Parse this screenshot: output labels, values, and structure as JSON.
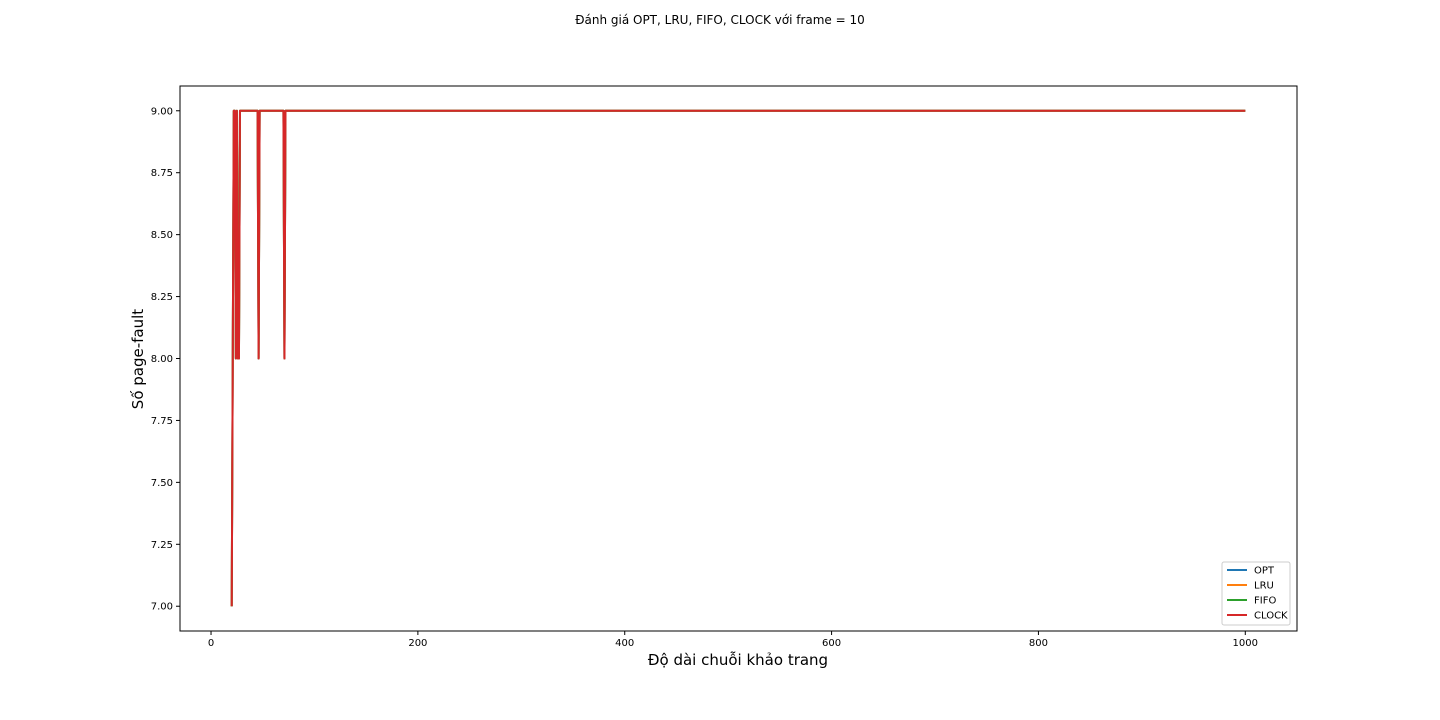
{
  "chart_data": {
    "type": "line",
    "title": "Đánh giá OPT, LRU, FIFO, CLOCK với frame = 10",
    "xlabel": "Độ dài chuỗi khảo trang",
    "ylabel": "Số page-fault",
    "xlim": [
      -30,
      1050
    ],
    "ylim": [
      6.9,
      9.1
    ],
    "xticks": [
      0,
      200,
      400,
      600,
      800,
      1000
    ],
    "xtick_labels": [
      "0",
      "200",
      "400",
      "600",
      "800",
      "1000"
    ],
    "yticks": [
      7.0,
      7.25,
      7.5,
      7.75,
      8.0,
      8.25,
      8.5,
      8.75,
      9.0
    ],
    "ytick_labels": [
      "7.00",
      "7.25",
      "7.50",
      "7.75",
      "8.00",
      "8.25",
      "8.50",
      "8.75",
      "9.00"
    ],
    "grid": false,
    "legend_position": "bottom-right",
    "series": [
      {
        "name": "OPT",
        "color": "#1f77b4",
        "x": [
          20,
          21,
          22,
          23,
          24,
          25,
          26,
          27,
          28,
          29,
          45,
          46,
          47,
          48,
          70,
          71,
          72,
          1000
        ],
        "y": [
          7,
          8,
          9,
          9,
          8,
          9,
          8,
          8,
          9,
          9,
          9,
          8,
          9,
          9,
          9,
          8,
          9,
          9
        ]
      },
      {
        "name": "LRU",
        "color": "#ff7f0e",
        "x": [
          20,
          21,
          22,
          23,
          24,
          25,
          26,
          27,
          28,
          29,
          45,
          46,
          47,
          48,
          70,
          71,
          72,
          1000
        ],
        "y": [
          7,
          8,
          9,
          9,
          8,
          9,
          8,
          8,
          9,
          9,
          9,
          8,
          9,
          9,
          9,
          8,
          9,
          9
        ]
      },
      {
        "name": "FIFO",
        "color": "#2ca02c",
        "x": [
          20,
          21,
          22,
          23,
          24,
          25,
          26,
          27,
          28,
          29,
          45,
          46,
          47,
          48,
          70,
          71,
          72,
          1000
        ],
        "y": [
          7,
          8,
          9,
          9,
          8,
          9,
          8,
          8,
          9,
          9,
          9,
          8,
          9,
          9,
          9,
          8,
          9,
          9
        ]
      },
      {
        "name": "CLOCK",
        "color": "#d62728",
        "x": [
          20,
          21,
          22,
          23,
          24,
          25,
          26,
          27,
          28,
          29,
          45,
          46,
          47,
          48,
          70,
          71,
          72,
          1000
        ],
        "y": [
          7,
          8,
          9,
          9,
          8,
          9,
          8,
          8,
          9,
          9,
          9,
          8,
          9,
          9,
          9,
          8,
          9,
          9
        ]
      }
    ]
  }
}
